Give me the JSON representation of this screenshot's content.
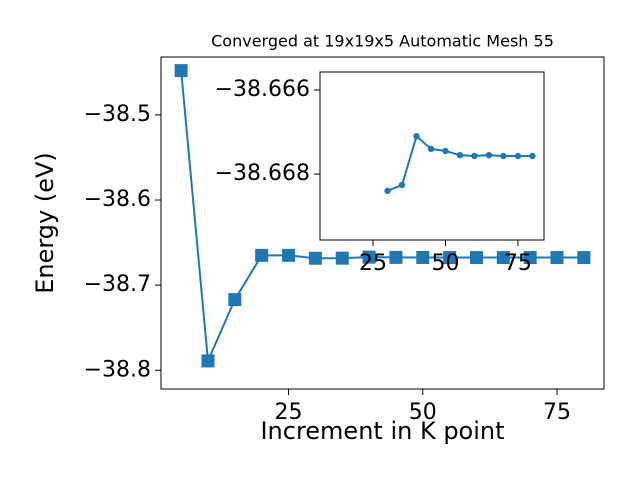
{
  "chart_data": [
    {
      "type": "line",
      "title": "Converged at 19x19x5 Automatic Mesh 55",
      "xlabel": "Increment in K point",
      "ylabel": "Energy (eV)",
      "marker": "square",
      "color": "#1f77b4",
      "x": [
        5,
        10,
        15,
        20,
        25,
        30,
        35,
        40,
        45,
        50,
        55,
        60,
        65,
        70,
        75,
        80
      ],
      "values": [
        -38.448,
        -38.789,
        -38.717,
        -38.665,
        -38.665,
        -38.6684,
        -38.6683,
        -38.6671,
        -38.6674,
        -38.6675,
        -38.6676,
        -38.6676,
        -38.6676,
        -38.6676,
        -38.6676,
        -38.6676
      ],
      "xlim": [
        1.25,
        83.75
      ],
      "ylim": [
        -38.822,
        -38.432
      ],
      "xticks": [
        25,
        50,
        75
      ],
      "yticks": [
        {
          "value": -38.5,
          "label": "−38.5"
        },
        {
          "value": -38.6,
          "label": "−38.6"
        },
        {
          "value": -38.7,
          "label": "−38.7"
        },
        {
          "value": -38.8,
          "label": "−38.8"
        }
      ]
    },
    {
      "type": "line",
      "marker": "circle",
      "color": "#1f77b4",
      "x": [
        30,
        35,
        40,
        45,
        50,
        55,
        60,
        65,
        70,
        75,
        80
      ],
      "values": [
        -38.6684,
        -38.66826,
        -38.6671,
        -38.6674,
        -38.66745,
        -38.66755,
        -38.66757,
        -38.66755,
        -38.66757,
        -38.66757,
        -38.66757
      ],
      "xlim": [
        6.7,
        84
      ],
      "ylim": [
        -38.66957,
        -38.66557
      ],
      "xticks": [
        25,
        50,
        75
      ],
      "yticks": [
        {
          "value": -38.668,
          "label": "−38.668"
        },
        {
          "value": -38.666,
          "label": "−38.666"
        }
      ]
    }
  ]
}
